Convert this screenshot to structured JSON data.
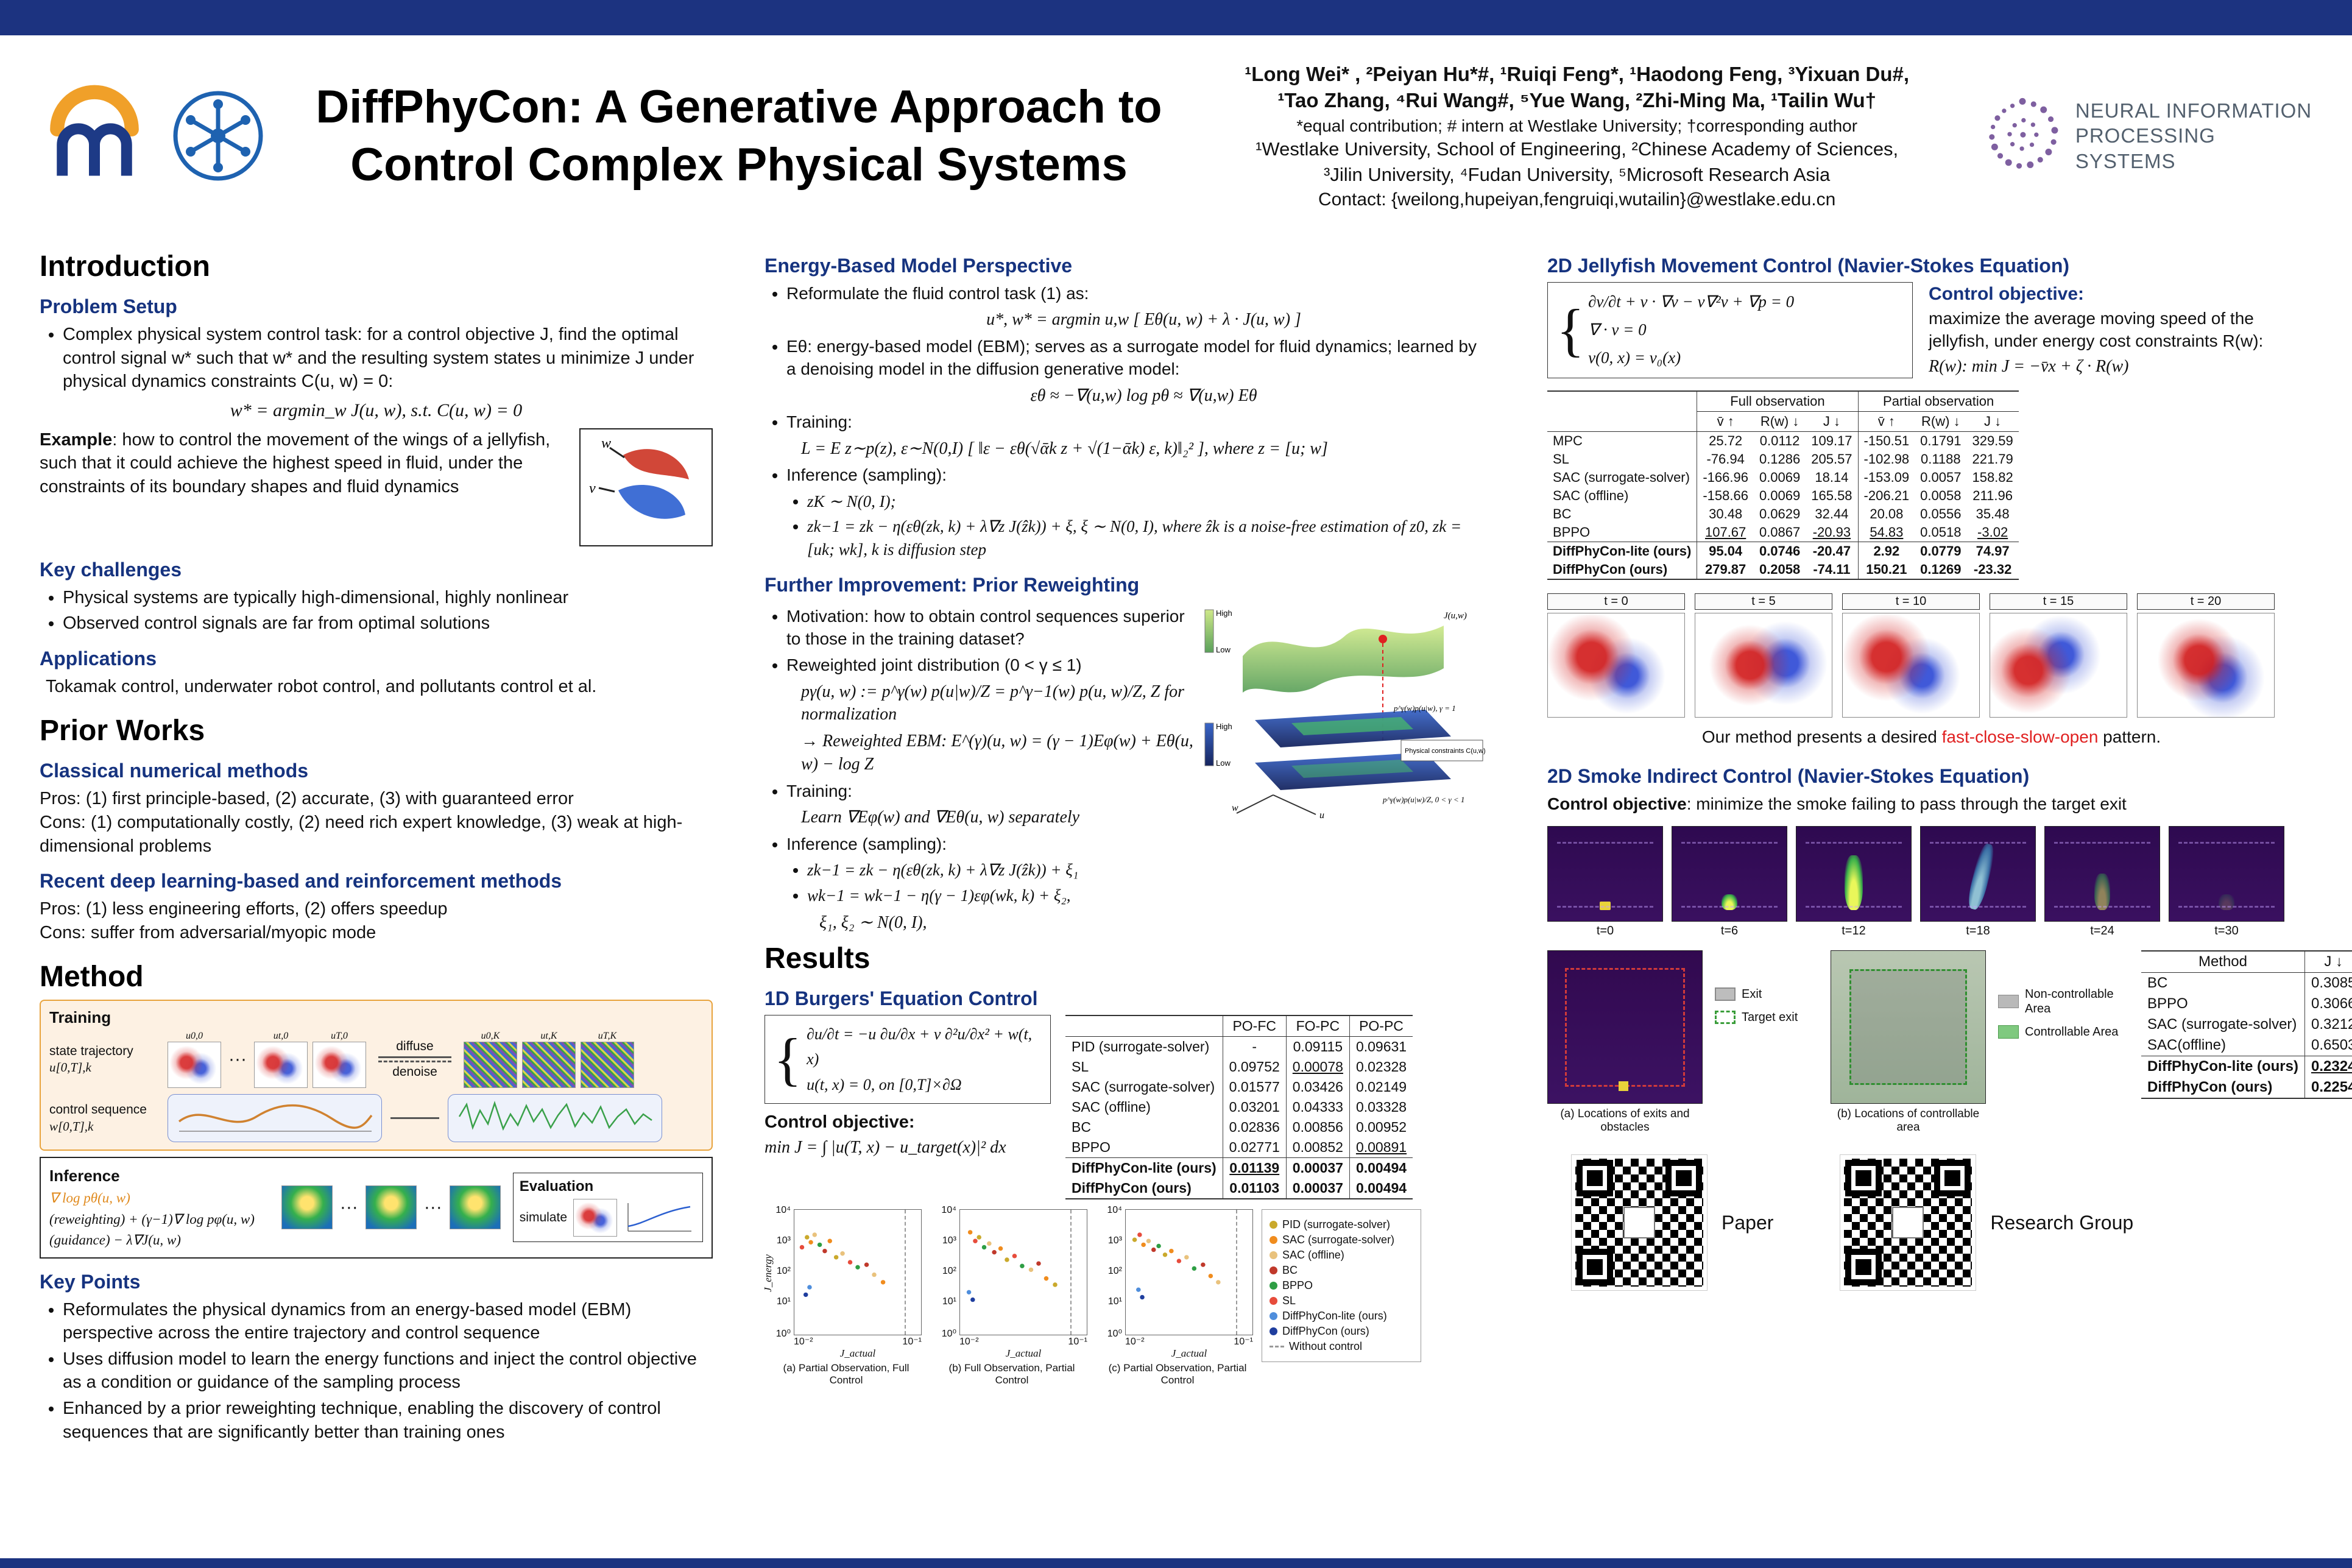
{
  "colors": {
    "navy": "#16337f",
    "orange": "#f0a029",
    "red_highlight": "#e02020"
  },
  "header": {
    "title1": "DiffPhyCon: A Generative Approach to",
    "title2": "Control Complex Physical Systems",
    "authors1": "¹Long Wei* , ²Peiyan Hu*#, ¹Ruiqi Feng*, ¹Haodong Feng, ³Yixuan Du#,",
    "authors2": "¹Tao Zhang, ⁴Rui Wang#, ⁵Yue Wang, ²Zhi-Ming Ma, ¹Tailin Wu†",
    "notes": "*equal contribution; # intern at Westlake University; †corresponding author",
    "affil1": "¹Westlake University, School of Engineering, ²Chinese Academy of Sciences,",
    "affil2": "³Jilin University, ⁴Fudan University, ⁵Microsoft Research Asia",
    "contact": "Contact: {weilong,hupeiyan,fengruiqi,wutailin}@westlake.edu.cn",
    "neurips1": "NEURAL INFORMATION",
    "neurips2": "PROCESSING SYSTEMS"
  },
  "intro": {
    "heading": "Introduction",
    "problem_heading": "Problem Setup",
    "problem_text": "Complex physical system control task: for a control objective J, find the optimal control signal w* such that w* and the resulting system states u minimize J under physical dynamics constraints C(u, w) = 0:",
    "problem_formula": "w* = argmin_w J(u, w),  s.t. C(u, w) = 0",
    "example_label": "Example",
    "example_text": ": how to control the movement of the wings of a jellyfish, such that it could achieve the highest speed in fluid, under the constraints of its boundary shapes and fluid dynamics",
    "fig_w": "w",
    "fig_v": "v",
    "challenges_heading": "Key challenges",
    "challenges": [
      "Physical systems are typically high-dimensional, highly nonlinear",
      "Observed control signals are far from optimal solutions"
    ],
    "applications_heading": "Applications",
    "applications_text": "Tokamak control, underwater robot control, and pollutants control et al."
  },
  "prior": {
    "heading": "Prior Works",
    "classical_heading": "Classical numerical methods",
    "classical_pros": "Pros: (1) first principle-based, (2) accurate, (3) with guaranteed error",
    "classical_cons": "Cons: (1) computationally costly, (2) need rich expert knowledge, (3) weak at high-dimensional problems",
    "recent_heading": "Recent deep learning-based and reinforcement methods",
    "recent_pros": "Pros: (1) less engineering efforts, (2) offers speedup",
    "recent_cons": "Cons: suffer from adversarial/myopic mode"
  },
  "method": {
    "heading": "Method",
    "fig": {
      "training_label": "Training",
      "state_label": "state trajectory",
      "state_sym": "u[0,T],k",
      "control_label": "control sequence",
      "control_sym": "w[0,T],k",
      "diffuse": "diffuse",
      "denoise": "denoise",
      "thumb_labels": [
        "u0,0",
        "ut,0",
        "uT,0",
        "u0,K",
        "ut,K",
        "uT,K"
      ],
      "inference_label": "Inference",
      "grad_line": "∇ log pθ(u, w)",
      "reweight_line": "(reweighting) + (γ−1)∇ log pφ(u, w)",
      "guidance_line": "(guidance)  − λ∇J(u, w)",
      "evaluation_label": "Evaluation",
      "simulate_label": "simulate"
    },
    "keypoints_heading": "Key Points",
    "keypoints": [
      "Reformulates the physical dynamics from an energy-based model (EBM) perspective across the entire trajectory and control sequence",
      "Uses diffusion model to learn the energy functions and inject the control objective as a condition or guidance of the sampling process",
      "Enhanced by a prior reweighting technique, enabling the discovery of control sequences that are significantly better than training ones"
    ]
  },
  "ebm": {
    "heading": "Energy-Based Model Perspective",
    "b1": "Reformulate the fluid control task (1) as:",
    "f1": "u*, w* = argmin u,w [ Eθ(u, w) + λ · J(u, w) ]",
    "b2": "Eθ: energy-based model (EBM); serves as a surrogate model for fluid dynamics; learned by a denoising model in the diffusion generative model:",
    "f2": "εθ ≈ −∇(u,w) log pθ ≈ ∇(u,w) Eθ",
    "b3": "Training:",
    "f3": "L = E z∼p(z), ε∼N(0,I) [ ‖ε − εθ(√ᾱk z + √(1−ᾱk) ε, k)‖₂² ],  where z = [u; w]",
    "b4": "Inference (sampling):",
    "f4": "zK ∼ N(0, I);",
    "f5": "zk−1 = zk − η(εθ(zk, k) + λ∇z J(ẑk)) + ξ,  ξ ∼ N(0, I),  where ẑk is a noise-free estimation of z0,  zk = [uk; wk],  k is diffusion step"
  },
  "reweight": {
    "heading": "Further Improvement: Prior Reweighting",
    "b1": "Motivation: how to obtain control sequences superior to those in the training dataset?",
    "b2": "Reweighted joint distribution (0 < γ ≤ 1)",
    "f1": "pγ(u, w) := p^γ(w) p(u|w)/Z = p^γ−1(w) p(u, w)/Z,  Z for normalization",
    "f2": "→ Reweighted EBM: E^(γ)(u, w) = (γ − 1)Eφ(w) + Eθ(u, w) − log Z",
    "b3": "Training:",
    "f3": "Learn ∇Eφ(w) and ∇Eθ(u, w) separately",
    "b4": "Inference (sampling):",
    "f4": "zk−1 = zk − η(εθ(zk, k) + λ∇z J(ẑk)) + ξ₁",
    "f5": "wk−1 = wk−1 − η(γ − 1)εφ(wk, k) + ξ₂,",
    "f6": "ξ₁, ξ₂ ∼ N(0, I),",
    "fig": {
      "high": "High",
      "low": "Low",
      "j": "J(u,w)",
      "p1": "p^γ(w)p(u|w), γ = 1",
      "pc": "Physical constraints C(u,w) = 0",
      "p2": "p^γ(w)p(u|w)/Z, 0 < γ < 1",
      "w": "w",
      "u": "u"
    }
  },
  "results": {
    "heading": "Results",
    "burgers": {
      "heading": "1D Burgers' Equation Control",
      "pde1": "∂u/∂t = −u ∂u/∂x + ν ∂²u/∂x² + w(t, x)",
      "pde2": "u(t, x) = 0,    on [0,T]×∂Ω",
      "obj_label": "Control objective:",
      "obj_formula": "min J = ∫ |u(T, x) − u_target(x)|² dx",
      "table": {
        "headers": [
          "",
          "PO-FC",
          "FO-PC",
          "PO-PC"
        ],
        "rows": [
          {
            "cells": [
              "PID (surrogate-solver)",
              "-",
              "0.09115",
              "0.09631"
            ]
          },
          {
            "cells": [
              "SL",
              "0.09752",
              "0.00078",
              "0.02328"
            ],
            "u": [
              2
            ]
          },
          {
            "cells": [
              "SAC (surrogate-solver)",
              "0.01577",
              "0.03426",
              "0.02149"
            ]
          },
          {
            "cells": [
              "SAC (offline)",
              "0.03201",
              "0.04333",
              "0.03328"
            ]
          },
          {
            "cells": [
              "BC",
              "0.02836",
              "0.00856",
              "0.00952"
            ]
          },
          {
            "cells": [
              "BPPO",
              "0.02771",
              "0.00852",
              "0.00891"
            ],
            "u": [
              3
            ]
          },
          {
            "cells": [
              "DiffPhyCon-lite (ours)",
              "0.01139",
              "0.00037",
              "0.00494"
            ],
            "bold": true,
            "u": [
              1
            ]
          },
          {
            "cells": [
              "DiffPhyCon (ours)",
              "0.01103",
              "0.00037",
              "0.00494"
            ],
            "bold": true
          }
        ]
      },
      "plots": {
        "ylabel": "J_energy",
        "xlabel": "J_actual",
        "yticks": [
          "10⁴",
          "10³",
          "10²",
          "10¹",
          "10⁰"
        ],
        "xticks": [
          "10⁻²",
          "10⁻¹"
        ],
        "captions": [
          "(a) Partial Observation, Full Control",
          "(b) Full Observation, Partial Control",
          "(c) Partial Observation, Partial Control"
        ],
        "legend": [
          {
            "label": "PID (surrogate-solver)",
            "color": "#caa92c"
          },
          {
            "label": "SAC (surrogate-solver)",
            "color": "#f08c1e"
          },
          {
            "label": "SAC (offline)",
            "color": "#e9c27d"
          },
          {
            "label": "BC",
            "color": "#c0392b"
          },
          {
            "label": "BPPO",
            "color": "#2e9e44"
          },
          {
            "label": "SL",
            "color": "#e74c3c"
          },
          {
            "label": "DiffPhyCon-lite (ours)",
            "color": "#4f8edc"
          },
          {
            "label": "DiffPhyCon (ours)",
            "color": "#1f3e9e"
          },
          {
            "label": "Without control",
            "color": "#999999"
          }
        ],
        "points_a": [
          {
            "x": 6,
            "y": 30,
            "c": "#e74c3c"
          },
          {
            "x": 10,
            "y": 22,
            "c": "#caa92c"
          },
          {
            "x": 13,
            "y": 26,
            "c": "#f08c1e"
          },
          {
            "x": 16,
            "y": 20,
            "c": "#e9c27d"
          },
          {
            "x": 20,
            "y": 28,
            "c": "#2e9e44"
          },
          {
            "x": 24,
            "y": 33,
            "c": "#c0392b"
          },
          {
            "x": 28,
            "y": 25,
            "c": "#f08c1e"
          },
          {
            "x": 33,
            "y": 38,
            "c": "#caa92c"
          },
          {
            "x": 38,
            "y": 35,
            "c": "#e9c27d"
          },
          {
            "x": 44,
            "y": 42,
            "c": "#e74c3c"
          },
          {
            "x": 50,
            "y": 46,
            "c": "#2e9e44"
          },
          {
            "x": 57,
            "y": 44,
            "c": "#c0392b"
          },
          {
            "x": 63,
            "y": 52,
            "c": "#e9c27d"
          },
          {
            "x": 70,
            "y": 58,
            "c": "#f08c1e"
          },
          {
            "x": 12,
            "y": 62,
            "c": "#4f8edc"
          },
          {
            "x": 9,
            "y": 68,
            "c": "#1f3e9e"
          }
        ],
        "points_b": [
          {
            "x": 8,
            "y": 18,
            "c": "#f08c1e"
          },
          {
            "x": 12,
            "y": 25,
            "c": "#e74c3c"
          },
          {
            "x": 15,
            "y": 22,
            "c": "#caa92c"
          },
          {
            "x": 19,
            "y": 30,
            "c": "#2e9e44"
          },
          {
            "x": 23,
            "y": 27,
            "c": "#e9c27d"
          },
          {
            "x": 27,
            "y": 34,
            "c": "#c0392b"
          },
          {
            "x": 32,
            "y": 31,
            "c": "#f08c1e"
          },
          {
            "x": 37,
            "y": 40,
            "c": "#caa92c"
          },
          {
            "x": 43,
            "y": 37,
            "c": "#e74c3c"
          },
          {
            "x": 49,
            "y": 45,
            "c": "#2e9e44"
          },
          {
            "x": 56,
            "y": 48,
            "c": "#e9c27d"
          },
          {
            "x": 62,
            "y": 43,
            "c": "#c0392b"
          },
          {
            "x": 68,
            "y": 55,
            "c": "#f08c1e"
          },
          {
            "x": 75,
            "y": 60,
            "c": "#caa92c"
          },
          {
            "x": 7,
            "y": 66,
            "c": "#4f8edc"
          },
          {
            "x": 10,
            "y": 72,
            "c": "#1f3e9e"
          }
        ],
        "points_c": [
          {
            "x": 7,
            "y": 24,
            "c": "#caa92c"
          },
          {
            "x": 11,
            "y": 20,
            "c": "#e74c3c"
          },
          {
            "x": 14,
            "y": 28,
            "c": "#f08c1e"
          },
          {
            "x": 18,
            "y": 25,
            "c": "#e9c27d"
          },
          {
            "x": 22,
            "y": 32,
            "c": "#c0392b"
          },
          {
            "x": 26,
            "y": 29,
            "c": "#2e9e44"
          },
          {
            "x": 31,
            "y": 36,
            "c": "#caa92c"
          },
          {
            "x": 36,
            "y": 33,
            "c": "#f08c1e"
          },
          {
            "x": 42,
            "y": 41,
            "c": "#e74c3c"
          },
          {
            "x": 48,
            "y": 38,
            "c": "#e9c27d"
          },
          {
            "x": 54,
            "y": 47,
            "c": "#2e9e44"
          },
          {
            "x": 61,
            "y": 44,
            "c": "#c0392b"
          },
          {
            "x": 67,
            "y": 53,
            "c": "#f08c1e"
          },
          {
            "x": 73,
            "y": 58,
            "c": "#e9c27d"
          },
          {
            "x": 10,
            "y": 64,
            "c": "#4f8edc"
          },
          {
            "x": 13,
            "y": 70,
            "c": "#1f3e9e"
          }
        ]
      }
    }
  },
  "jellyfish": {
    "heading": "2D Jellyfish Movement Control (Navier-Stokes Equation)",
    "eq1": "∂v/∂t + v · ∇v − ν∇²v + ∇p = 0",
    "eq2": "∇ · v = 0",
    "eq3": "v(0, x) = v₀(x)",
    "obj_label": "Control objective:",
    "obj_text": "maximize the average moving speed of the jellyfish, under energy cost constraints R(w):",
    "obj_formula": "R(w): min J = −v̄x + ζ · R(w)",
    "table": {
      "group1": "Full observation",
      "group2": "Partial observation",
      "sub": [
        "v̄ ↑",
        "R(w) ↓",
        "J ↓",
        "v̄ ↑",
        "R(w) ↓",
        "J ↓"
      ],
      "rows": [
        {
          "cells": [
            "MPC",
            "25.72",
            "0.0112",
            "109.17",
            "-150.51",
            "0.1791",
            "329.59"
          ]
        },
        {
          "cells": [
            "SL",
            "-76.94",
            "0.1286",
            "205.57",
            "-102.98",
            "0.1188",
            "221.79"
          ]
        },
        {
          "cells": [
            "SAC (surrogate-solver)",
            "-166.96",
            "0.0069",
            "18.14",
            "-153.09",
            "0.0057",
            "158.82"
          ]
        },
        {
          "cells": [
            "SAC (offline)",
            "-158.66",
            "0.0069",
            "165.58",
            "-206.21",
            "0.0058",
            "211.96"
          ]
        },
        {
          "cells": [
            "BC",
            "30.48",
            "0.0629",
            "32.44",
            "20.08",
            "0.0556",
            "35.48"
          ]
        },
        {
          "cells": [
            "BPPO",
            "107.67",
            "0.0867",
            "-20.93",
            "54.83",
            "0.0518",
            "-3.02"
          ],
          "u": [
            1,
            3,
            4,
            6
          ]
        },
        {
          "cells": [
            "DiffPhyCon-lite (ours)",
            "95.04",
            "0.0746",
            "-20.47",
            "2.92",
            "0.0779",
            "74.97"
          ],
          "bold": true
        },
        {
          "cells": [
            "DiffPhyCon (ours)",
            "279.87",
            "0.2058",
            "-74.11",
            "150.21",
            "0.1269",
            "-23.32"
          ],
          "bold": true
        }
      ]
    },
    "frames": [
      "t = 0",
      "t = 5",
      "t = 10",
      "t = 15",
      "t = 20"
    ],
    "caption_pre": "Our method presents a desired ",
    "caption_red": "fast-close-slow-open",
    "caption_post": " pattern."
  },
  "smoke": {
    "heading": "2D Smoke Indirect Control (Navier-Stokes Equation)",
    "obj_label": "Control objective",
    "obj_text": ": minimize the smoke failing to pass through the target exit",
    "frames": [
      "t=0",
      "t=6",
      "t=12",
      "t=18",
      "t=24",
      "t=30"
    ],
    "maps": {
      "caption_a": "(a) Locations of exits and obstacles",
      "caption_b": "(b) Locations of controllable area"
    },
    "legend": {
      "exit": "Exit",
      "target": "Target exit",
      "noncontrol": "Non-controllable Area",
      "control": "Controllable Area"
    },
    "table": {
      "h1": "Method",
      "h2": "J ↓",
      "rows": [
        {
          "cells": [
            "BC",
            "0.3085"
          ]
        },
        {
          "cells": [
            "BPPO",
            "0.3066"
          ]
        },
        {
          "cells": [
            "SAC (surrogate-solver)",
            "0.3212"
          ]
        },
        {
          "cells": [
            "SAC(offline)",
            "0.6503"
          ]
        },
        {
          "cells": [
            "DiffPhyCon-lite (ours)",
            "0.2324"
          ],
          "bold": true,
          "u": [
            1
          ]
        },
        {
          "cells": [
            "DiffPhyCon (ours)",
            "0.2254"
          ],
          "bold": true
        }
      ]
    }
  },
  "qr": {
    "paper_label": "Paper",
    "group_label": "Research Group"
  }
}
